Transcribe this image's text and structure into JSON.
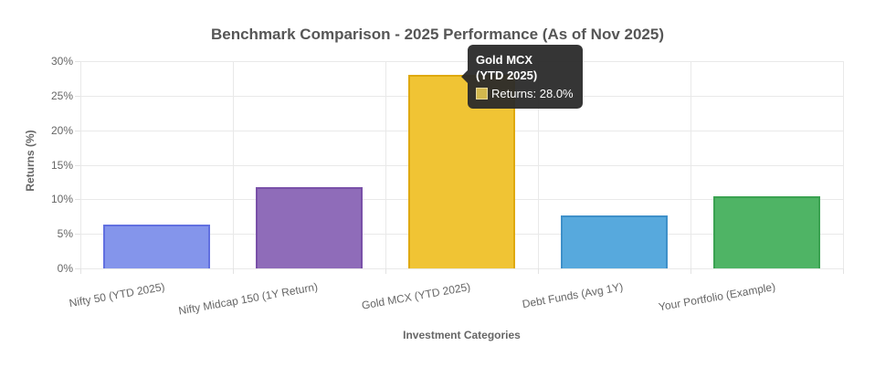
{
  "chart_data": {
    "type": "bar",
    "title": "Benchmark Comparison - 2025 Performance (As of Nov 2025)",
    "xlabel": "Investment Categories",
    "ylabel": "Returns (%)",
    "categories": [
      "Nifty 50 (YTD 2025)",
      "Nifty Midcap 150 (1Y Return)",
      "Gold MCX (YTD 2025)",
      "Debt Funds (Avg 1Y)",
      "Your Portfolio (Example)"
    ],
    "series": [
      {
        "name": "Returns",
        "values": [
          6.3,
          11.7,
          28.0,
          7.7,
          10.5
        ]
      }
    ],
    "ylim": [
      0,
      30
    ],
    "ytick_step": 5,
    "ytick_labels": [
      "0%",
      "5%",
      "10%",
      "15%",
      "20%",
      "25%",
      "30%"
    ],
    "grid": true,
    "legend_position": "none",
    "x_tick_rotation_deg": -10,
    "bar_colors": [
      {
        "fill": "#8495EB",
        "border": "#6170E0"
      },
      {
        "fill": "#8F6CB9",
        "border": "#7950A8"
      },
      {
        "fill": "#F0C434",
        "border": "#DFA90C"
      },
      {
        "fill": "#57A9DD",
        "border": "#3E90C9"
      },
      {
        "fill": "#4FB465",
        "border": "#3AA251"
      }
    ]
  },
  "tooltip": {
    "visible": true,
    "anchor_category": "Gold MCX (YTD 2025)",
    "title_lines": [
      "Gold MCX",
      "(YTD 2025)"
    ],
    "body": "Returns: 28.0%",
    "background": "rgba(42,42,42,0.95)",
    "text_color": "#ffffff",
    "swatch_fill": "#D3B84E",
    "swatch_border": "#E6D79B"
  },
  "style": {
    "title_color": "#565656",
    "axis_title_color": "#666666",
    "tick_label_color": "#666666",
    "grid_color": "#E9E9E9",
    "background": "#FFFFFF"
  }
}
